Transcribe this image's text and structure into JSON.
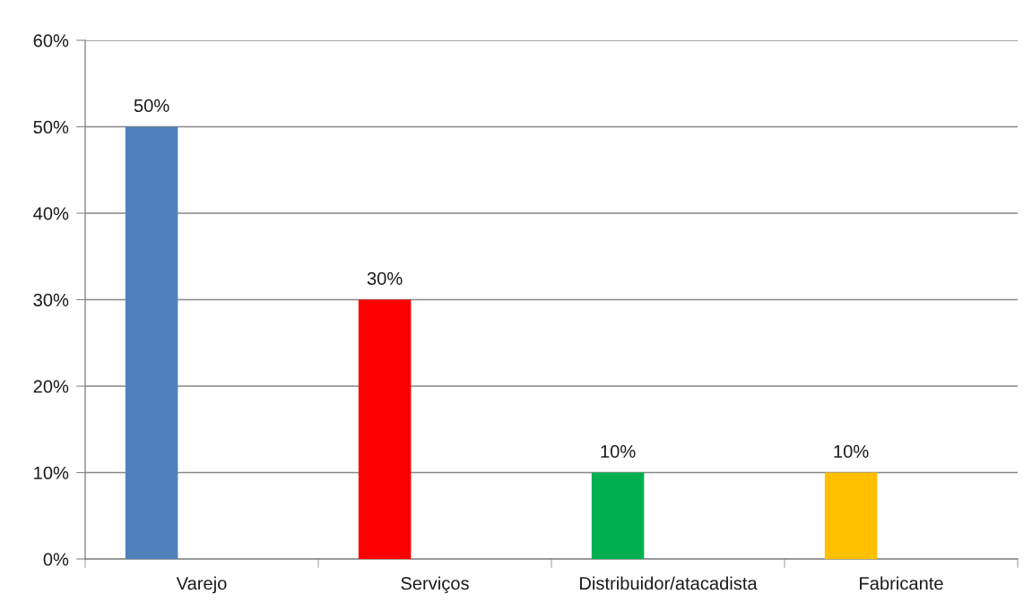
{
  "chart_data": {
    "type": "bar",
    "categories": [
      "Varejo",
      "Serviços",
      "Distribuidor/atacadista",
      "Fabricante"
    ],
    "values": [
      50,
      30,
      10,
      10
    ],
    "colors": [
      "#4f81bd",
      "#ff0000",
      "#00b050",
      "#ffc000"
    ],
    "value_labels": [
      "50%",
      "30%",
      "10%",
      "10%"
    ],
    "ylim": [
      0,
      60
    ],
    "yticks": [
      {
        "value": 0,
        "label": "0%"
      },
      {
        "value": 10,
        "label": "10%"
      },
      {
        "value": 20,
        "label": "20%"
      },
      {
        "value": 30,
        "label": "30%"
      },
      {
        "value": 40,
        "label": "40%"
      },
      {
        "value": 50,
        "label": "50%"
      },
      {
        "value": 60,
        "label": "60%"
      }
    ],
    "grid": "y",
    "legend": false
  }
}
